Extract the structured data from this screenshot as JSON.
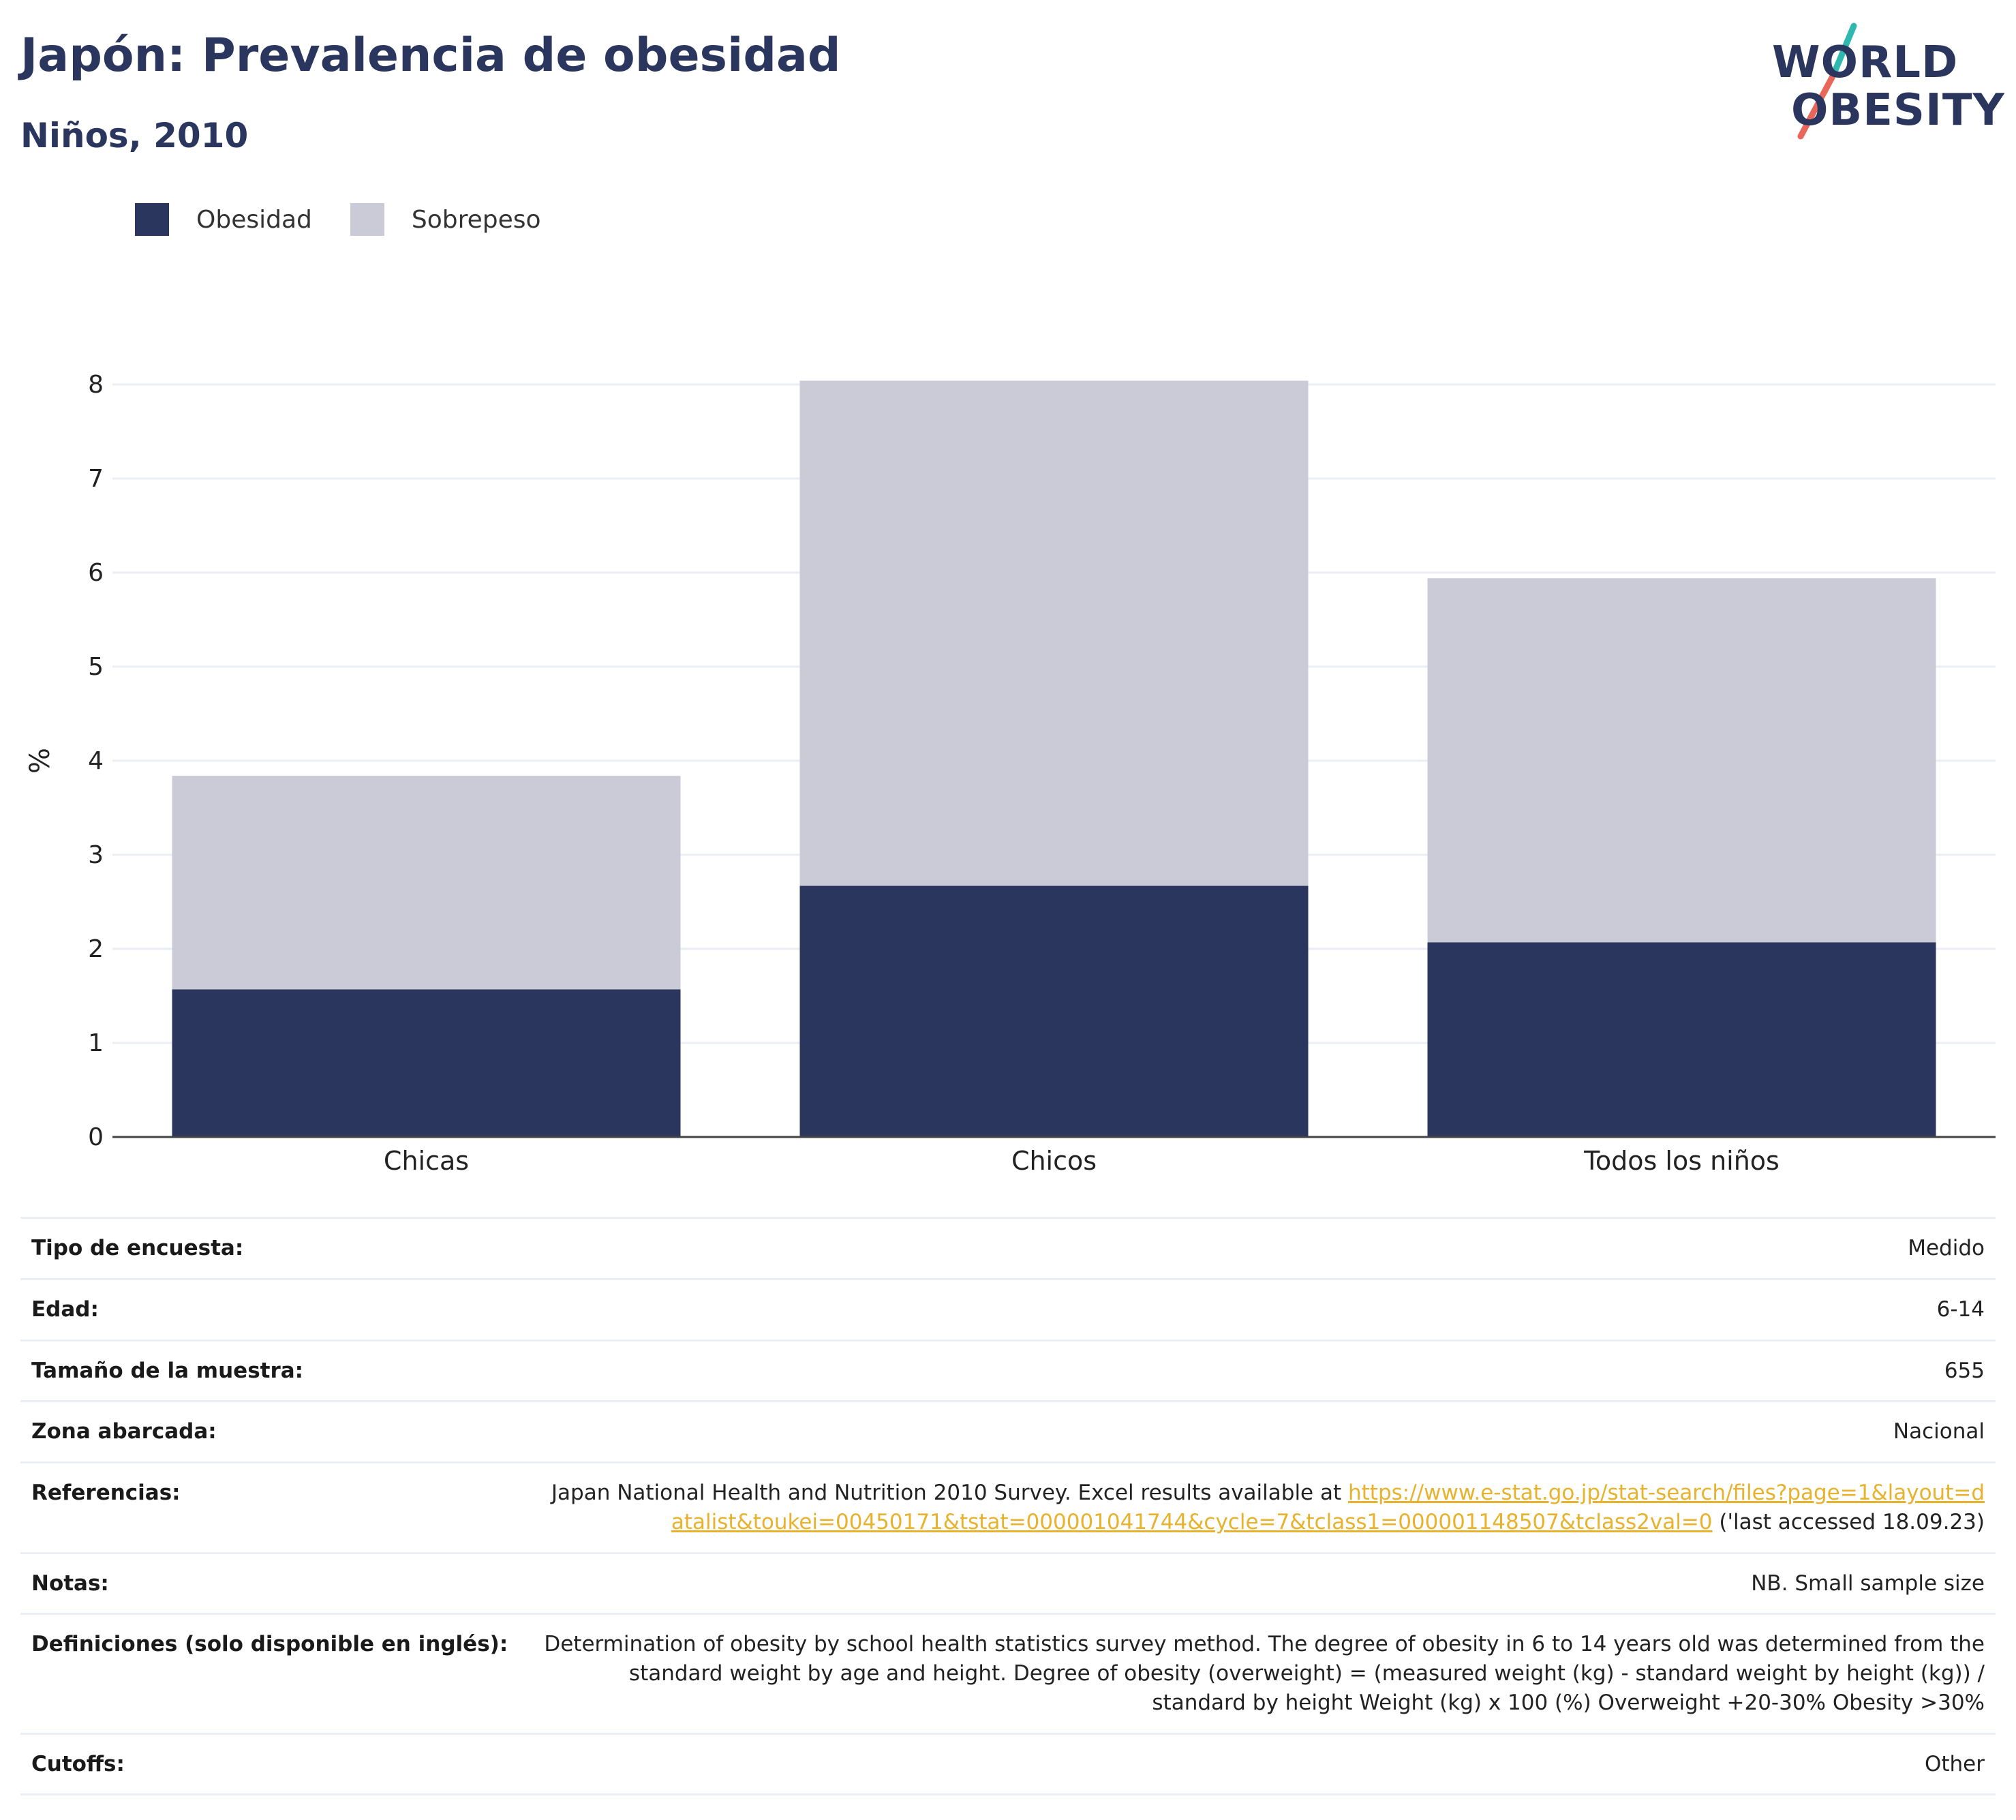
{
  "header": {
    "title": "Japón: Prevalencia de obesidad",
    "subtitle": "Niños, 2010"
  },
  "logo": {
    "line1": "WORLD",
    "line2": "OBESITY"
  },
  "colors": {
    "obesity": "#2b365f",
    "overweight": "#cacbd7",
    "grid": "#eceef5",
    "axis": "#444444",
    "logo_teal": "#2eb8b0",
    "logo_coral": "#e8665a",
    "link": "#e8b22c"
  },
  "chart_data": {
    "type": "bar",
    "stacked": true,
    "categories": [
      "Chicas",
      "Chicos",
      "Todos los niños"
    ],
    "series": [
      {
        "name": "Obesidad",
        "values": [
          1.57,
          2.67,
          2.07
        ]
      },
      {
        "name": "Sobrepeso",
        "values": [
          2.27,
          5.37,
          3.87
        ]
      }
    ],
    "totals": [
      3.84,
      8.04,
      5.94
    ],
    "ylabel": "%",
    "xlabel": "",
    "ylim": [
      0,
      8
    ],
    "yticks": [
      0,
      1,
      2,
      3,
      4,
      5,
      6,
      7,
      8
    ],
    "grid": true,
    "legend_position": "top-left"
  },
  "metadata": [
    {
      "label": "Tipo de encuesta:",
      "value": "Medido"
    },
    {
      "label": "Edad:",
      "value": "6-14"
    },
    {
      "label": "Tamaño de la muestra:",
      "value": "655"
    },
    {
      "label": "Zona abarcada:",
      "value": "Nacional"
    },
    {
      "label": "Referencias:",
      "value_before": "Japan National Health and Nutrition 2010 Survey. Excel results available at ",
      "link_text": "https://www.e-stat.go.jp/stat-search/files?page=1&layout=datalist&toukei=00450171&tstat=000001041744&cycle=7&tclass1=000001148507&tclass2val=0",
      "value_after": " ('last accessed 18.09.23)"
    },
    {
      "label": "Notas:",
      "value": "NB. Small sample size"
    },
    {
      "label": "Definiciones (solo disponible en inglés):",
      "value": "Determination of obesity by school health statistics survey method. The degree of obesity in 6 to 14 years old was determined from the standard weight by age and height. Degree of obesity (overweight) = (measured weight (kg) - standard weight by height (kg)) / standard by height Weight (kg) x 100 (%) Overweight +20-30% Obesity >30%"
    },
    {
      "label": "Cutoffs:",
      "value": "Other"
    }
  ]
}
